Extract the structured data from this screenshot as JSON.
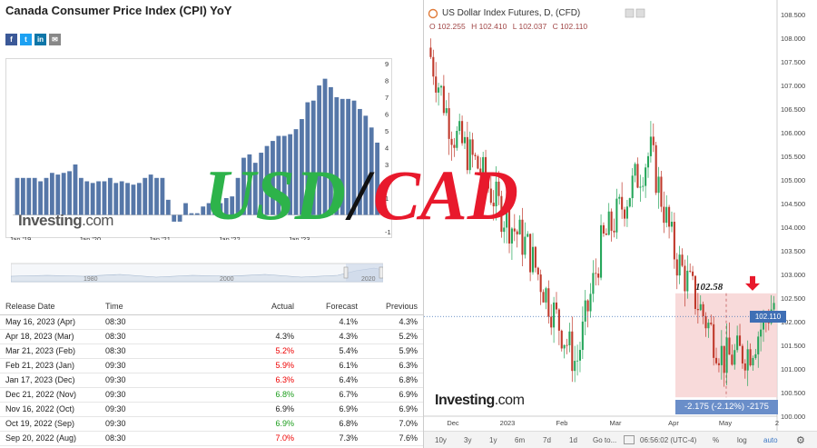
{
  "left": {
    "title": "Canada Consumer Price Index (CPI) YoY",
    "share_icons": [
      {
        "name": "facebook-icon",
        "glyph": "f",
        "color": "#3b5998"
      },
      {
        "name": "twitter-icon",
        "glyph": "t",
        "color": "#1da1f2"
      },
      {
        "name": "linkedin-icon",
        "glyph": "in",
        "color": "#0e76a8"
      },
      {
        "name": "email-icon",
        "glyph": "✉",
        "color": "#888888"
      }
    ],
    "logo_main": "Investing",
    "logo_suffix": ".com",
    "navigator_labels": [
      "1980",
      "2000",
      "2020"
    ],
    "table": {
      "headers": [
        "Release Date",
        "Time",
        "Actual",
        "Forecast",
        "Previous"
      ],
      "rows": [
        {
          "date": "May 16, 2023 (Apr)",
          "time": "08:30",
          "actual": "",
          "actual_color": "black",
          "forecast": "4.1%",
          "previous": "4.3%"
        },
        {
          "date": "Apr 18, 2023 (Mar)",
          "time": "08:30",
          "actual": "4.3%",
          "actual_color": "black",
          "forecast": "4.3%",
          "previous": "5.2%"
        },
        {
          "date": "Mar 21, 2023 (Feb)",
          "time": "08:30",
          "actual": "5.2%",
          "actual_color": "red",
          "forecast": "5.4%",
          "previous": "5.9%"
        },
        {
          "date": "Feb 21, 2023 (Jan)",
          "time": "09:30",
          "actual": "5.9%",
          "actual_color": "red",
          "forecast": "6.1%",
          "previous": "6.3%"
        },
        {
          "date": "Jan 17, 2023 (Dec)",
          "time": "09:30",
          "actual": "6.3%",
          "actual_color": "red",
          "forecast": "6.4%",
          "previous": "6.8%"
        },
        {
          "date": "Dec 21, 2022 (Nov)",
          "time": "09:30",
          "actual": "6.8%",
          "actual_color": "green",
          "forecast": "6.7%",
          "previous": "6.9%"
        },
        {
          "date": "Nov 16, 2022 (Oct)",
          "time": "09:30",
          "actual": "6.9%",
          "actual_color": "black",
          "forecast": "6.9%",
          "previous": "6.9%"
        },
        {
          "date": "Oct 19, 2022 (Sep)",
          "time": "09:30",
          "actual": "6.9%",
          "actual_color": "green",
          "forecast": "6.8%",
          "previous": "7.0%"
        },
        {
          "date": "Sep 20, 2022 (Aug)",
          "time": "08:30",
          "actual": "7.0%",
          "actual_color": "red",
          "forecast": "7.3%",
          "previous": "7.6%"
        }
      ]
    }
  },
  "right": {
    "title": "US Dollar Index Futures, D, (CFD)",
    "ohlc": [
      "O 102.255",
      "H 102.410",
      "L 102.037",
      "C 102.110"
    ],
    "current_price": "102.110",
    "annotation_price": "102.58",
    "range_label": "-2.175 (-2.12%) -2175",
    "logo_main": "Investing",
    "logo_suffix": ".com",
    "toolbar": [
      "10y",
      "3y",
      "1y",
      "6m",
      "7d",
      "1d",
      "Go to...",
      "06:56:02 (UTC-4)",
      "%",
      "log",
      "auto"
    ]
  },
  "overlay": {
    "usd": "USD",
    "slash": "/",
    "cad": "CAD"
  },
  "colors": {
    "bar": "#5677a8",
    "up": "#26a65b",
    "down": "#c0392b",
    "range_fill": "#f7d3d3",
    "arrow": "#e8192c"
  },
  "chart_data": [
    {
      "type": "bar",
      "ylim": [
        -1,
        9
      ],
      "y_ticks": [
        "9",
        "8",
        "7",
        "6",
        "5",
        "4",
        "3",
        "2",
        "1",
        "0",
        "-1"
      ],
      "x_ticks": [
        "Jan '19",
        "Jan '20",
        "Jan '21",
        "Jan '22",
        "Jan '23"
      ],
      "values": [
        2.2,
        2.2,
        2.2,
        2.2,
        2.0,
        2.2,
        2.5,
        2.4,
        2.5,
        2.6,
        3.0,
        2.2,
        2.0,
        1.9,
        2.0,
        2.0,
        2.2,
        1.9,
        2.0,
        1.9,
        1.8,
        1.9,
        2.2,
        2.4,
        2.2,
        2.2,
        0.9,
        -0.4,
        -0.4,
        0.7,
        0.1,
        0.1,
        0.5,
        0.7,
        1.0,
        0.7,
        1.0,
        1.1,
        2.2,
        3.4,
        3.6,
        3.1,
        3.7,
        4.1,
        4.4,
        4.7,
        4.7,
        4.8,
        5.1,
        5.7,
        6.7,
        6.8,
        7.7,
        8.1,
        7.6,
        7.0,
        6.9,
        6.9,
        6.8,
        6.3,
        5.9,
        5.2,
        4.3
      ],
      "xlabel": "",
      "ylabel": ""
    },
    {
      "type": "line",
      "title": "US Dollar Index Futures, D, (CFD)",
      "ylim": [
        100.0,
        108.5
      ],
      "y_ticks": [
        "108.500",
        "108.000",
        "107.500",
        "107.000",
        "106.500",
        "106.000",
        "105.500",
        "105.000",
        "104.500",
        "104.000",
        "103.500",
        "103.000",
        "102.500",
        "102.000",
        "101.500",
        "101.000",
        "100.500",
        "100.000"
      ],
      "x_ticks": [
        "Dec",
        "2023",
        "Feb",
        "Mar",
        "Apr",
        "May",
        "2"
      ],
      "x": [
        "Nov 01",
        "Nov 15",
        "Dec 01",
        "Dec 15",
        "Jan 01",
        "Jan 15",
        "Feb 01",
        "Feb 15",
        "Mar 01",
        "Mar 10",
        "Mar 15",
        "Apr 01",
        "Apr 15",
        "May 01",
        "May 15"
      ],
      "values": [
        107.8,
        106.0,
        105.3,
        104.3,
        103.6,
        102.3,
        101.1,
        103.6,
        104.6,
        105.6,
        103.4,
        102.3,
        101.2,
        101.4,
        102.4
      ],
      "annotations": [
        "102.58",
        "-2.175 (-2.12%) -2175"
      ]
    }
  ]
}
